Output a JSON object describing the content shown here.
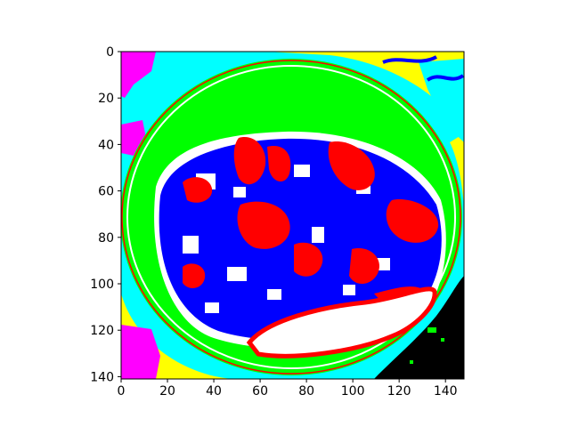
{
  "chart_data": {
    "type": "heatmap",
    "title": "",
    "xlabel": "",
    "ylabel": "",
    "xlim": [
      0,
      148
    ],
    "ylim": [
      141,
      0
    ],
    "x_ticks": [
      0,
      20,
      40,
      60,
      80,
      100,
      120,
      140
    ],
    "y_ticks": [
      0,
      20,
      40,
      60,
      80,
      100,
      120,
      140
    ],
    "grid": false,
    "legend": "none",
    "colors": {
      "magenta": "#ff00ff",
      "cyan": "#00ffff",
      "yellow": "#ffff00",
      "green": "#00ff00",
      "white": "#ffffff",
      "blue": "#0000ff",
      "red": "#ff0000",
      "black": "#000000"
    },
    "image_description_regions": [
      {
        "label": "outer-left-top",
        "color": "cyan"
      },
      {
        "label": "outer-magenta-patches",
        "color": "magenta"
      },
      {
        "label": "outer-yellow-band",
        "color": "yellow"
      },
      {
        "label": "ring",
        "color": "green"
      },
      {
        "label": "interior-blue",
        "color": "blue"
      },
      {
        "label": "interior-red",
        "color": "red"
      },
      {
        "label": "interior-white",
        "color": "white"
      },
      {
        "label": "lower-right-black",
        "color": "black"
      }
    ]
  }
}
